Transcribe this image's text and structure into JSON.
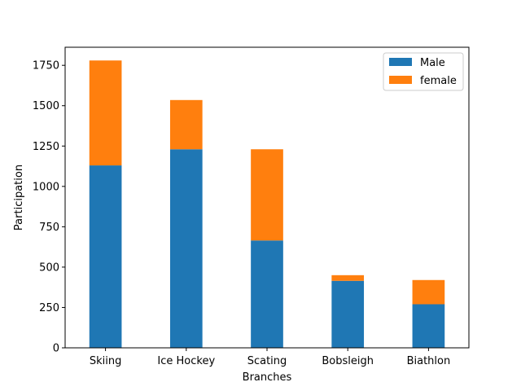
{
  "chart_data": {
    "type": "bar",
    "stacked": true,
    "title": "",
    "xlabel": "Branches",
    "ylabel": "Participation",
    "categories": [
      "Skiing",
      "Ice Hockey",
      "Scating",
      "Bobsleigh",
      "Biathlon"
    ],
    "series": [
      {
        "name": "Male",
        "color": "#1f77b4",
        "values": [
          1130,
          1230,
          665,
          415,
          270
        ]
      },
      {
        "name": "female",
        "color": "#ff7f0e",
        "values": [
          650,
          305,
          565,
          35,
          150
        ]
      }
    ],
    "ylim": [
      0,
      1862
    ],
    "yticks": [
      0,
      250,
      500,
      750,
      1000,
      1250,
      1500,
      1750
    ],
    "grid": false,
    "legend_position": "top-right"
  }
}
